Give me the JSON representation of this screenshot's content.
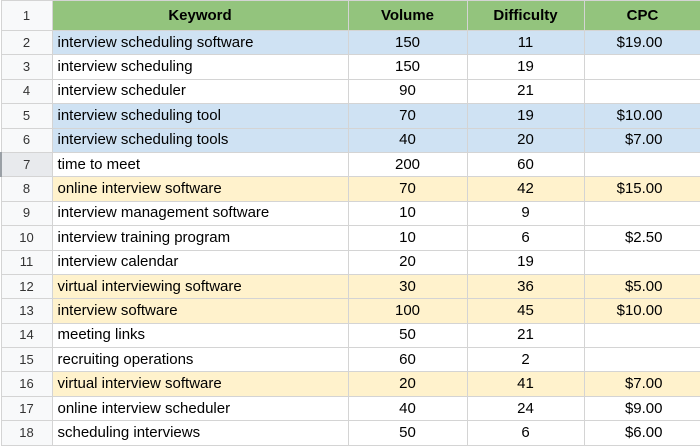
{
  "header": {
    "row_number": "1",
    "keyword": "Keyword",
    "volume": "Volume",
    "difficulty": "Difficulty",
    "cpc": "CPC"
  },
  "colors": {
    "header_green": "#93c47d",
    "highlight_blue": "#cfe2f3",
    "highlight_yellow": "#fff2cc",
    "row_header_gray": "#f8f9fa"
  },
  "rows": [
    {
      "n": "2",
      "keyword": "interview scheduling software",
      "volume": "150",
      "difficulty": "11",
      "cpc": "$19.00",
      "highlight": "blue"
    },
    {
      "n": "3",
      "keyword": "interview scheduling",
      "volume": "150",
      "difficulty": "19",
      "cpc": "",
      "highlight": "white"
    },
    {
      "n": "4",
      "keyword": "interview scheduler",
      "volume": "90",
      "difficulty": "21",
      "cpc": "",
      "highlight": "white"
    },
    {
      "n": "5",
      "keyword": "interview scheduling tool",
      "volume": "70",
      "difficulty": "19",
      "cpc": "$10.00",
      "highlight": "blue"
    },
    {
      "n": "6",
      "keyword": "interview scheduling tools",
      "volume": "40",
      "difficulty": "20",
      "cpc": "$7.00",
      "highlight": "blue"
    },
    {
      "n": "7",
      "keyword": "time to meet",
      "volume": "200",
      "difficulty": "60",
      "cpc": "",
      "highlight": "white"
    },
    {
      "n": "8",
      "keyword": "online interview software",
      "volume": "70",
      "difficulty": "42",
      "cpc": "$15.00",
      "highlight": "yellow"
    },
    {
      "n": "9",
      "keyword": "interview management software",
      "volume": "10",
      "difficulty": "9",
      "cpc": "",
      "highlight": "white"
    },
    {
      "n": "10",
      "keyword": "interview training program",
      "volume": "10",
      "difficulty": "6",
      "cpc": "$2.50",
      "highlight": "white"
    },
    {
      "n": "11",
      "keyword": "interview calendar",
      "volume": "20",
      "difficulty": "19",
      "cpc": "",
      "highlight": "white"
    },
    {
      "n": "12",
      "keyword": "virtual interviewing software",
      "volume": "30",
      "difficulty": "36",
      "cpc": "$5.00",
      "highlight": "yellow"
    },
    {
      "n": "13",
      "keyword": "interview software",
      "volume": "100",
      "difficulty": "45",
      "cpc": "$10.00",
      "highlight": "yellow"
    },
    {
      "n": "14",
      "keyword": "meeting links",
      "volume": "50",
      "difficulty": "21",
      "cpc": "",
      "highlight": "white"
    },
    {
      "n": "15",
      "keyword": "recruiting operations",
      "volume": "60",
      "difficulty": "2",
      "cpc": "",
      "highlight": "white"
    },
    {
      "n": "16",
      "keyword": "virtual interview software",
      "volume": "20",
      "difficulty": "41",
      "cpc": "$7.00",
      "highlight": "yellow"
    },
    {
      "n": "17",
      "keyword": "online interview scheduler",
      "volume": "40",
      "difficulty": "24",
      "cpc": "$9.00",
      "highlight": "white"
    },
    {
      "n": "18",
      "keyword": "scheduling interviews",
      "volume": "50",
      "difficulty": "6",
      "cpc": "$6.00",
      "highlight": "white"
    }
  ]
}
